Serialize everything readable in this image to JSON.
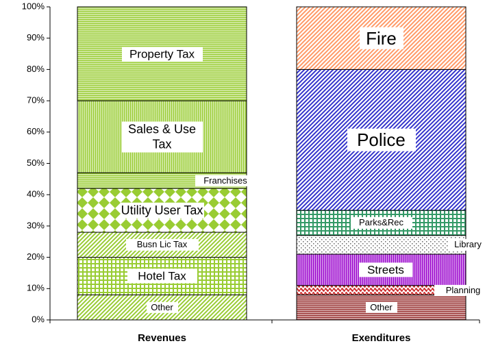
{
  "chart_data": {
    "type": "stacked_bar",
    "categories": [
      "Revenues",
      "Exenditures"
    ],
    "ylim": [
      0,
      100
    ],
    "yticks": [
      {
        "value": 0,
        "label": "0%"
      },
      {
        "value": 10,
        "label": "10%"
      },
      {
        "value": 20,
        "label": "20%"
      },
      {
        "value": 30,
        "label": "30%"
      },
      {
        "value": 40,
        "label": "40%"
      },
      {
        "value": 50,
        "label": "50%"
      },
      {
        "value": 60,
        "label": "60%"
      },
      {
        "value": 70,
        "label": "70%"
      },
      {
        "value": 80,
        "label": "80%"
      },
      {
        "value": 90,
        "label": "90%"
      },
      {
        "value": 100,
        "label": "100%"
      }
    ],
    "series": [
      {
        "name": "Other",
        "color": "#99cc33",
        "values": [
          8,
          null
        ]
      },
      {
        "name": "Hotel Tax",
        "color": "#99cc33",
        "values": [
          12,
          null
        ]
      },
      {
        "name": "Busn Lic Tax",
        "color": "#99cc33",
        "values": [
          8,
          null
        ]
      },
      {
        "name": "Utility User Tax",
        "color": "#99cc33",
        "values": [
          14,
          null
        ]
      },
      {
        "name": "Franchises",
        "color": "#99cc33",
        "values": [
          5,
          null
        ]
      },
      {
        "name": "Sales & Use Tax",
        "color": "#99cc33",
        "values": [
          23,
          null
        ]
      },
      {
        "name": "Property Tax",
        "color": "#99cc33",
        "values": [
          30,
          null
        ]
      },
      {
        "name": "Other",
        "color": "#993333",
        "values": [
          null,
          8
        ]
      },
      {
        "name": "Planning",
        "color": "#cc3333",
        "values": [
          null,
          3
        ]
      },
      {
        "name": "Streets",
        "color": "#9900cc",
        "values": [
          null,
          10
        ]
      },
      {
        "name": "Library",
        "color": "#666666",
        "values": [
          null,
          6
        ]
      },
      {
        "name": "Parks&Rec",
        "color": "#339966",
        "values": [
          null,
          8
        ]
      },
      {
        "name": "Police",
        "color": "#3333cc",
        "values": [
          null,
          45
        ]
      },
      {
        "name": "Fire",
        "color": "#ff9966",
        "values": [
          null,
          20
        ]
      }
    ]
  }
}
